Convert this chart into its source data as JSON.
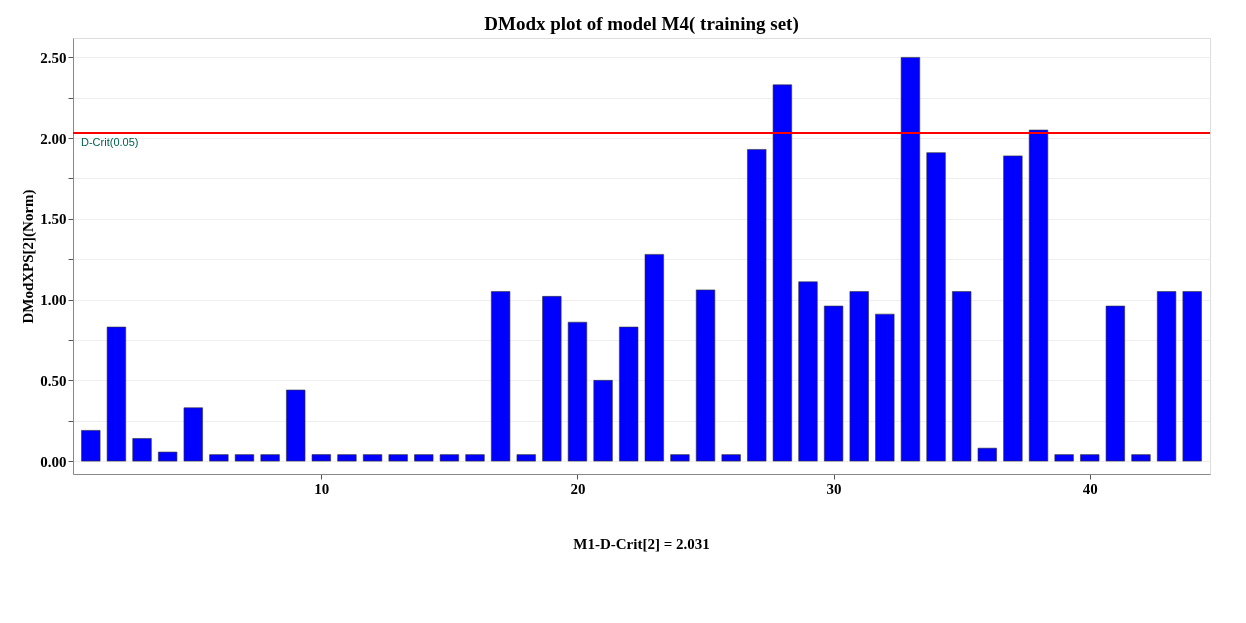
{
  "chart_data": {
    "type": "bar",
    "title": "DModx plot of model M4( training set)",
    "ylabel": "DModXPS[2](Norm)",
    "x": [
      1,
      2,
      3,
      4,
      5,
      6,
      7,
      8,
      9,
      10,
      11,
      12,
      13,
      14,
      15,
      16,
      17,
      18,
      19,
      20,
      21,
      22,
      23,
      24,
      25,
      26,
      27,
      28,
      29,
      30,
      31,
      32,
      33,
      34,
      35,
      36,
      37,
      38,
      39,
      40,
      41,
      42,
      43,
      44
    ],
    "values": [
      0.19,
      0.83,
      0.14,
      0.056,
      0.33,
      0.04,
      0.04,
      0.04,
      0.44,
      0.04,
      0.04,
      0.04,
      0.04,
      0.04,
      0.04,
      0.04,
      1.05,
      0.04,
      1.02,
      0.86,
      0.5,
      0.83,
      1.28,
      0.04,
      1.06,
      0.04,
      1.93,
      2.33,
      1.11,
      0.96,
      1.05,
      0.91,
      2.5,
      1.91,
      1.05,
      0.08,
      1.89,
      2.05,
      0.04,
      0.04,
      0.96,
      0.04,
      1.05,
      1.05
    ],
    "color": "#0000ff",
    "xlim": [
      0.5,
      44.5
    ],
    "xticks": [
      10,
      20,
      30,
      40
    ],
    "ylim": [
      -0.08,
      2.62
    ],
    "yticks": [
      {
        "value": 0,
        "label": "0.00"
      },
      {
        "value": 0.25,
        "label": null
      },
      {
        "value": 0.5,
        "label": "0.50"
      },
      {
        "value": 0.75,
        "label": null
      },
      {
        "value": 1.0,
        "label": "1.00"
      },
      {
        "value": 1.25,
        "label": null
      },
      {
        "value": 1.5,
        "label": "1.50"
      },
      {
        "value": 1.75,
        "label": null
      },
      {
        "value": 2.0,
        "label": "2.00"
      },
      {
        "value": 2.25,
        "label": null
      },
      {
        "value": 2.5,
        "label": "2.50"
      }
    ],
    "ref_lines": [
      {
        "axis": "y",
        "value": 2.031,
        "label": "D-Crit(0.05)",
        "color": "#ff0000"
      }
    ],
    "annotations": [
      "M1-D-Crit[2] = 2.031"
    ],
    "grid": "y"
  }
}
